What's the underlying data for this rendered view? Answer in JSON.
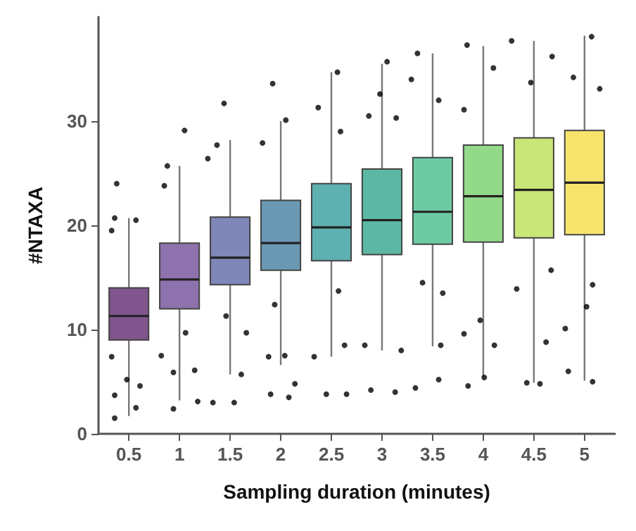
{
  "chart_data": {
    "type": "box",
    "xlabel": "Sampling duration (minutes)",
    "ylabel": "#NTAXA",
    "x": [
      0.5,
      1,
      1.5,
      2,
      2.5,
      3,
      3.5,
      4,
      4.5,
      5
    ],
    "xlim": [
      0.2,
      5.3
    ],
    "xticks": [
      0.5,
      1,
      1.5,
      2,
      2.5,
      3,
      3.5,
      4,
      4.5,
      5
    ],
    "ylim": [
      0,
      40
    ],
    "yticks": [
      0,
      10,
      20,
      30
    ],
    "colors": [
      "#80558e",
      "#8e72ad",
      "#7f86b8",
      "#6b99b4",
      "#5fb0b0",
      "#5cb8a5",
      "#6ccba3",
      "#92d98a",
      "#c9e678",
      "#f7e46c"
    ],
    "boxes": [
      {
        "low": 1.7,
        "q1": 9.0,
        "median": 11.3,
        "q3": 14.0,
        "high": 20.7
      },
      {
        "low": 3.2,
        "q1": 12.0,
        "median": 14.8,
        "q3": 18.3,
        "high": 25.7
      },
      {
        "low": 5.7,
        "q1": 14.3,
        "median": 16.9,
        "q3": 20.8,
        "high": 28.2
      },
      {
        "low": 6.6,
        "q1": 15.7,
        "median": 18.3,
        "q3": 22.4,
        "high": 30.0
      },
      {
        "low": 7.4,
        "q1": 16.6,
        "median": 19.8,
        "q3": 24.0,
        "high": 34.7
      },
      {
        "low": 8.0,
        "q1": 17.2,
        "median": 20.5,
        "q3": 25.4,
        "high": 35.5
      },
      {
        "low": 8.4,
        "q1": 18.2,
        "median": 21.3,
        "q3": 26.5,
        "high": 36.5
      },
      {
        "low": 5.4,
        "q1": 18.4,
        "median": 22.8,
        "q3": 27.7,
        "high": 37.2
      },
      {
        "low": 4.9,
        "q1": 18.8,
        "median": 23.4,
        "q3": 28.4,
        "high": 37.7
      },
      {
        "low": 5.1,
        "q1": 19.1,
        "median": 24.1,
        "q3": 29.1,
        "high": 38.2
      }
    ],
    "series": [
      {
        "type": "scatter",
        "color": "#000000",
        "x": [
          0.38,
          0.36,
          0.57,
          0.33,
          0.36,
          0.36,
          0.61,
          0.48,
          0.33,
          0.57,
          1.05,
          0.88,
          0.82,
          0.94,
          0.94,
          1.15,
          1.18,
          1.06,
          0.85,
          1.44,
          1.37,
          1.66,
          1.61,
          1.33,
          1.54,
          1.46,
          1.28,
          1.92,
          2.05,
          1.82,
          1.9,
          2.08,
          1.88,
          2.04,
          1.94,
          2.14,
          2.56,
          2.37,
          2.45,
          2.33,
          2.65,
          2.63,
          2.57,
          2.59,
          3.05,
          2.98,
          2.89,
          3.13,
          3.19,
          2.83,
          2.87,
          3.14,
          3.35,
          3.29,
          3.33,
          3.56,
          3.4,
          3.58,
          3.6,
          3.56,
          3.84,
          4.1,
          3.85,
          4.01,
          3.97,
          4.11,
          3.81,
          3.81,
          4.28,
          4.68,
          4.43,
          4.56,
          4.33,
          4.62,
          4.47,
          4.67,
          5.07,
          4.89,
          4.84,
          5.08,
          4.81,
          5.02,
          5.08,
          5.15
        ],
        "values": [
          24.0,
          20.7,
          20.5,
          7.4,
          3.7,
          1.5,
          4.6,
          5.2,
          19.5,
          2.5,
          29.1,
          25.7,
          7.5,
          5.9,
          2.4,
          6.1,
          3.1,
          9.7,
          23.8,
          31.7,
          27.7,
          9.7,
          5.7,
          3.0,
          3.0,
          11.3,
          26.4,
          33.6,
          30.1,
          27.9,
          3.8,
          3.5,
          7.4,
          7.5,
          12.4,
          4.8,
          34.7,
          31.3,
          3.8,
          7.4,
          3.8,
          8.5,
          13.7,
          29.0,
          35.7,
          32.6,
          4.2,
          4.0,
          8.0,
          8.5,
          30.5,
          30.3,
          36.5,
          34.0,
          4.4,
          5.2,
          14.5,
          8.5,
          13.5,
          32.0,
          37.3,
          35.1,
          4.6,
          5.4,
          10.9,
          8.5,
          9.6,
          31.1,
          37.7,
          36.2,
          4.9,
          4.8,
          13.9,
          8.8,
          33.7,
          15.7,
          38.1,
          34.2,
          6.0,
          5.0,
          10.1,
          12.2,
          14.3,
          33.1
        ]
      }
    ]
  }
}
